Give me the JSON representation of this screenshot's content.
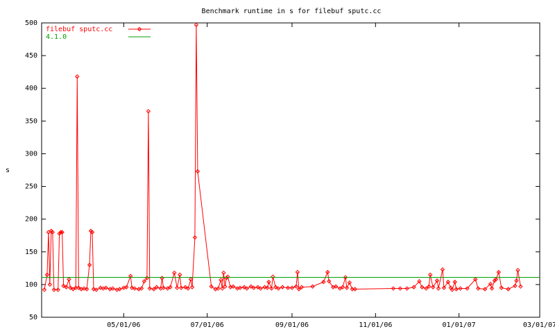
{
  "chart_data": {
    "type": "line",
    "title": "Benchmark runtime in s for filebuf sputc.cc",
    "y_label": "s",
    "xlim": [
      "03/02/06",
      "03/01/07"
    ],
    "xticks": [
      "05/01/06",
      "07/01/06",
      "09/01/06",
      "11/01/06",
      "01/01/07",
      "03/01/07"
    ],
    "ylim": [
      50,
      500
    ],
    "yticks": [
      50,
      100,
      150,
      200,
      250,
      300,
      350,
      400,
      450,
      500
    ],
    "legend": "top-left",
    "grid": false,
    "series": [
      {
        "name": "filebuf sputc.cc",
        "color": "#ff0000",
        "markers": true,
        "x": [
          "03/04/06",
          "03/06/06",
          "03/07/06",
          "03/08/06",
          "03/09/06",
          "03/10/06",
          "03/11/06",
          "03/14/06",
          "03/15/06",
          "03/16/06",
          "03/17/06",
          "03/18/06",
          "03/20/06",
          "03/22/06",
          "03/23/06",
          "03/25/06",
          "03/27/06",
          "03/28/06",
          "03/29/06",
          "03/31/06",
          "04/02/06",
          "04/04/06",
          "04/06/06",
          "04/07/06",
          "04/08/06",
          "04/09/06",
          "04/11/06",
          "04/14/06",
          "04/16/06",
          "04/18/06",
          "04/21/06",
          "04/23/06",
          "04/26/06",
          "04/28/06",
          "05/01/06",
          "05/03/06",
          "05/06/06",
          "05/07/06",
          "05/09/06",
          "05/12/06",
          "05/14/06",
          "05/16/06",
          "05/18/06",
          "05/19/06",
          "05/20/06",
          "05/23/06",
          "05/25/06",
          "05/28/06",
          "05/29/06",
          "05/30/06",
          "06/02/06",
          "06/04/06",
          "06/07/06",
          "06/09/06",
          "06/11/06",
          "06/12/06",
          "06/15/06",
          "06/17/06",
          "06/19/06",
          "06/20/06",
          "06/22/06",
          "06/23/06",
          "06/24/06",
          "07/04/06",
          "07/07/06",
          "07/09/06",
          "07/11/06",
          "07/12/06",
          "07/13/06",
          "07/14/06",
          "07/15/06",
          "07/16/06",
          "07/18/06",
          "07/20/06",
          "07/23/06",
          "07/25/06",
          "07/28/06",
          "07/30/06",
          "08/02/06",
          "08/04/06",
          "08/07/06",
          "08/09/06",
          "08/12/06",
          "08/14/06",
          "08/15/06",
          "08/17/06",
          "08/18/06",
          "08/20/06",
          "08/22/06",
          "08/25/06",
          "08/29/06",
          "09/01/06",
          "09/04/06",
          "09/05/06",
          "09/06/06",
          "09/08/06",
          "09/16/06",
          "09/24/06",
          "09/27/06",
          "09/28/06",
          "10/01/06",
          "10/03/06",
          "10/06/06",
          "10/08/06",
          "10/10/06",
          "10/11/06",
          "10/13/06",
          "10/15/06",
          "10/17/06",
          "11/14/06",
          "11/19/06",
          "11/24/06",
          "11/29/06",
          "12/03/06",
          "12/05/06",
          "12/08/06",
          "12/10/06",
          "12/11/06",
          "12/13/06",
          "12/16/06",
          "12/17/06",
          "12/20/06",
          "12/21/06",
          "12/24/06",
          "12/26/06",
          "12/27/06",
          "12/29/06",
          "12/30/06",
          "01/02/07",
          "01/07/07",
          "01/13/07",
          "01/15/07",
          "01/20/07",
          "01/24/07",
          "01/25/07",
          "01/27/07",
          "01/28/07",
          "01/30/07",
          "02/01/07",
          "02/06/07",
          "02/11/07",
          "02/12/07",
          "02/13/07",
          "02/15/07"
        ],
        "values": [
          92,
          115,
          180,
          100,
          182,
          180,
          92,
          92,
          178,
          180,
          180,
          98,
          96,
          108,
          95,
          93,
          95,
          418,
          95,
          93,
          94,
          93,
          130,
          182,
          180,
          93,
          92,
          95,
          94,
          95,
          93,
          94,
          92,
          93,
          95,
          96,
          113,
          95,
          94,
          93,
          94,
          105,
          110,
          365,
          94,
          93,
          96,
          94,
          110,
          95,
          94,
          96,
          118,
          95,
          115,
          95,
          96,
          94,
          108,
          96,
          172,
          497,
          273,
          97,
          93,
          94,
          107,
          94,
          118,
          97,
          110,
          112,
          96,
          97,
          94,
          95,
          96,
          94,
          97,
          95,
          96,
          94,
          96,
          95,
          104,
          94,
          112,
          96,
          94,
          96,
          95,
          95,
          97,
          119,
          93,
          96,
          97,
          104,
          119,
          105,
          96,
          97,
          94,
          96,
          111,
          95,
          103,
          93,
          93,
          94,
          94,
          94,
          96,
          105,
          96,
          94,
          97,
          115,
          96,
          106,
          94,
          123,
          95,
          104,
          95,
          92,
          104,
          93,
          94,
          94,
          108,
          94,
          93,
          101,
          94,
          106,
          108,
          119,
          95,
          93,
          98,
          106,
          122,
          97
        ]
      },
      {
        "name": "4.1.0",
        "color": "#00a000",
        "markers": false,
        "x": [
          "03/02/06",
          "03/01/07"
        ],
        "values": [
          111,
          111
        ]
      }
    ]
  }
}
